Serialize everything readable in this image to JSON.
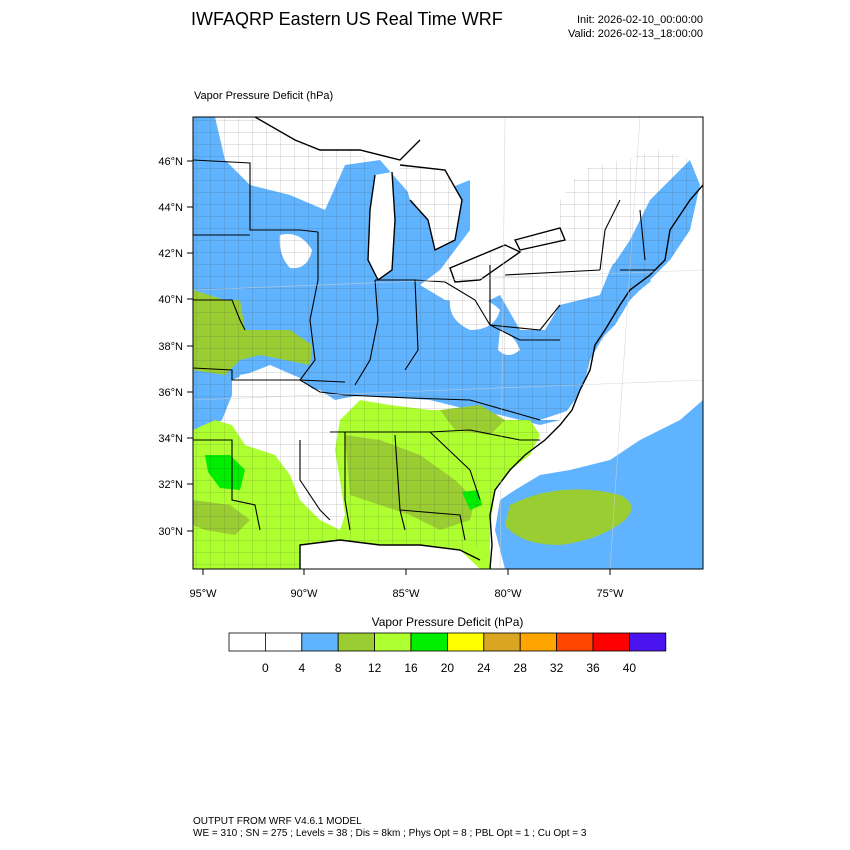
{
  "header": {
    "title": "IWFAQRP Eastern US Real Time WRF",
    "init": "Init: 2026-02-10_00:00:00",
    "valid": "Valid: 2026-02-13_18:00:00"
  },
  "panel": {
    "label": "Vapor Pressure Deficit   (hPa)"
  },
  "map": {
    "lon_ticks": [
      "95°W",
      "90°W",
      "85°W",
      "80°W",
      "75°W"
    ],
    "lat_ticks": [
      "46°N",
      "44°N",
      "42°N",
      "40°N",
      "38°N",
      "36°N",
      "34°N",
      "32°N",
      "30°N"
    ],
    "colors": {
      "water": "#ffffff",
      "land_low": "#ffffff",
      "blue": "#60b4ff",
      "olive": "#9acd32",
      "lime": "#adff2f",
      "green": "#00ee00"
    }
  },
  "colorbar": {
    "title": "Vapor Pressure Deficit  (hPa)",
    "labels": [
      "0",
      "4",
      "8",
      "12",
      "16",
      "20",
      "24",
      "28",
      "32",
      "36",
      "40"
    ],
    "colors": [
      "#ffffff",
      "#ffffff",
      "#60b4ff",
      "#9acd32",
      "#adff2f",
      "#00ee00",
      "#ffff00",
      "#daa520",
      "#ffa500",
      "#ff4500",
      "#ff0000",
      "#4a14f0"
    ]
  },
  "footer": {
    "line1": "OUTPUT FROM WRF V4.6.1 MODEL",
    "line2": "WE = 310 ; SN = 275 ; Levels = 38 ; Dis = 8km ; Phys Opt = 8 ; PBL Opt = 1 ; Cu Opt = 3"
  }
}
